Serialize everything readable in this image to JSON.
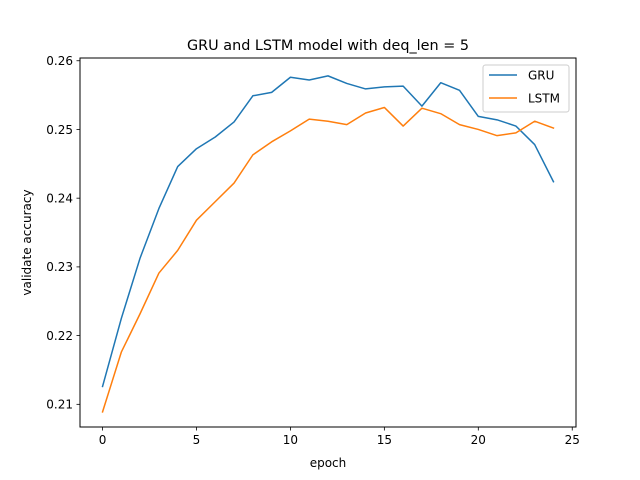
{
  "chart_data": {
    "type": "line",
    "title": "GRU and LSTM model with deq_len = 5",
    "xlabel": "epoch",
    "ylabel": "validate accuracy",
    "xlim": [
      -1.2,
      25.2
    ],
    "ylim": [
      0.2067,
      0.2604
    ],
    "xticks": [
      0,
      5,
      10,
      15,
      20,
      25
    ],
    "yticks": [
      0.21,
      0.22,
      0.23,
      0.24,
      0.25,
      0.26
    ],
    "ytick_labels": [
      "0.21",
      "0.22",
      "0.23",
      "0.24",
      "0.25",
      "0.26"
    ],
    "grid": false,
    "legend": "upper-right",
    "x": [
      0,
      1,
      2,
      3,
      4,
      5,
      6,
      7,
      8,
      9,
      10,
      11,
      12,
      13,
      14,
      15,
      16,
      17,
      18,
      19,
      20,
      21,
      22,
      23,
      24
    ],
    "series": [
      {
        "name": "GRU",
        "color": "#1f77b4",
        "values": [
          0.2126,
          0.2225,
          0.2313,
          0.2385,
          0.2446,
          0.2472,
          0.2489,
          0.2511,
          0.2549,
          0.2554,
          0.2576,
          0.2572,
          0.2578,
          0.2567,
          0.2559,
          0.2562,
          0.2563,
          0.2534,
          0.2568,
          0.2557,
          0.2519,
          0.2514,
          0.2505,
          0.2478,
          0.2424
        ]
      },
      {
        "name": "LSTM",
        "color": "#ff7f0e",
        "values": [
          0.2089,
          0.2176,
          0.2232,
          0.2291,
          0.2324,
          0.2368,
          0.2395,
          0.2422,
          0.2463,
          0.2482,
          0.2498,
          0.2515,
          0.2512,
          0.2507,
          0.2524,
          0.2532,
          0.2505,
          0.2531,
          0.2523,
          0.2507,
          0.25,
          0.2491,
          0.2495,
          0.2512,
          0.2502
        ]
      }
    ]
  }
}
